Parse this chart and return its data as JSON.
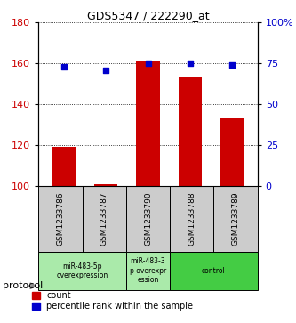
{
  "title": "GDS5347 / 222290_at",
  "samples": [
    "GSM1233786",
    "GSM1233787",
    "GSM1233790",
    "GSM1233788",
    "GSM1233789"
  ],
  "count_values": [
    119,
    101,
    161,
    153,
    133
  ],
  "percentile_values": [
    73,
    71,
    75,
    75,
    74
  ],
  "ylim_left": [
    100,
    180
  ],
  "ylim_right": [
    0,
    100
  ],
  "yticks_left": [
    100,
    120,
    140,
    160,
    180
  ],
  "yticks_right": [
    0,
    25,
    50,
    75,
    100
  ],
  "ytick_labels_right": [
    "0",
    "25",
    "50",
    "75",
    "100%"
  ],
  "bar_color": "#cc0000",
  "dot_color": "#0000cc",
  "protocol_label": "protocol",
  "legend_count_label": "count",
  "legend_percentile_label": "percentile rank within the sample",
  "sample_box_color": "#cccccc",
  "bar_width": 0.55,
  "x_positions": [
    0,
    1,
    2,
    3,
    4
  ],
  "groups": [
    {
      "indices": [
        0,
        1
      ],
      "label": "miR-483-5p\noverexpression",
      "color": "#aaeaaa"
    },
    {
      "indices": [
        2
      ],
      "label": "miR-483-3\np overexpr\nession",
      "color": "#aaeaaa"
    },
    {
      "indices": [
        3,
        4
      ],
      "label": "control",
      "color": "#44cc44"
    }
  ]
}
